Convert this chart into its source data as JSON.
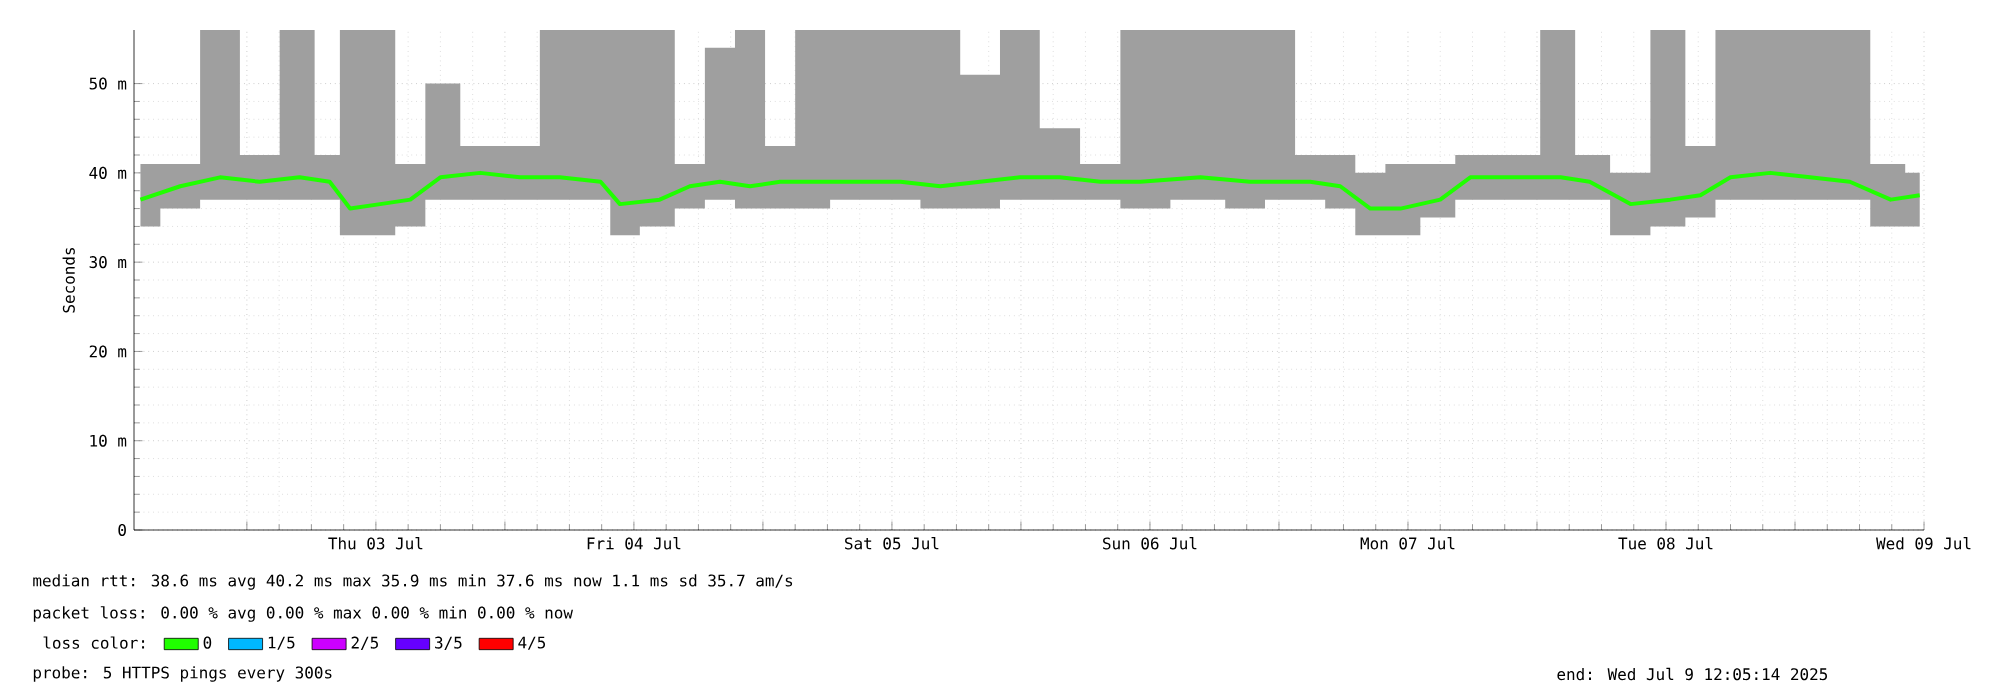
{
  "chart_data": {
    "type": "line",
    "ylabel": "Seconds",
    "legend_title": "loss color:",
    "legend": "bottom",
    "grid": true,
    "marker": "none",
    "line_style": "solid",
    "x": [
      "2025-07-02T02:06",
      "2025-07-02T05:48",
      "2025-07-02T09:30",
      "2025-07-02T13:12",
      "2025-07-02T16:54",
      "2025-07-02T19:42",
      "2025-07-02T21:36",
      "2025-07-03T00:24",
      "2025-07-03T03:12",
      "2025-07-03T06:00",
      "2025-07-03T09:42",
      "2025-07-03T13:24",
      "2025-07-03T17:06",
      "2025-07-03T20:54",
      "2025-07-03T22:42",
      "2025-07-04T02:24",
      "2025-07-04T05:12",
      "2025-07-04T08:00",
      "2025-07-04T10:48",
      "2025-07-04T13:36",
      "2025-07-04T16:24",
      "2025-07-04T20:06",
      "2025-07-05T00:48",
      "2025-07-05T04:30",
      "2025-07-05T08:12",
      "2025-07-05T11:54",
      "2025-07-05T15:36",
      "2025-07-05T19:24",
      "2025-07-05T23:06",
      "2025-07-06T04:42",
      "2025-07-06T09:18",
      "2025-07-06T12:06",
      "2025-07-06T14:54",
      "2025-07-06T17:42",
      "2025-07-06T20:30",
      "2025-07-06T23:18",
      "2025-07-07T03:00",
      "2025-07-07T05:48",
      "2025-07-07T10:24",
      "2025-07-07T14:12",
      "2025-07-07T16:54",
      "2025-07-07T20:42",
      "2025-07-08T00:24",
      "2025-07-08T03:12",
      "2025-07-08T06:00",
      "2025-07-08T09:42",
      "2025-07-08T13:24",
      "2025-07-08T17:06",
      "2025-07-08T20:54",
      "2025-07-08T23:36"
    ],
    "xlim": [
      "2025-07-02T01:30",
      "2025-07-09"
    ],
    "ylim": [
      0,
      56
    ],
    "xticks": [
      {
        "value": "2025-07-02T12:00",
        "label": null
      },
      {
        "value": "2025-07-03",
        "label": "Thu 03 Jul"
      },
      {
        "value": "2025-07-03T12:00",
        "label": null
      },
      {
        "value": "2025-07-04",
        "label": "Fri 04 Jul"
      },
      {
        "value": "2025-07-04T12:00",
        "label": null
      },
      {
        "value": "2025-07-05",
        "label": "Sat 05 Jul"
      },
      {
        "value": "2025-07-05T12:00",
        "label": null
      },
      {
        "value": "2025-07-06",
        "label": "Sun 06 Jul"
      },
      {
        "value": "2025-07-06T12:00",
        "label": null
      },
      {
        "value": "2025-07-07",
        "label": "Mon 07 Jul"
      },
      {
        "value": "2025-07-07T12:00",
        "label": null
      },
      {
        "value": "2025-07-08",
        "label": "Tue 08 Jul"
      },
      {
        "value": "2025-07-08T12:00",
        "label": null
      },
      {
        "value": "2025-07-09",
        "label": "Wed 09 Jul"
      }
    ],
    "yticks": [
      0,
      {
        "value": 10,
        "label": "10 m"
      },
      {
        "value": 20,
        "label": "20 m"
      },
      {
        "value": 30,
        "label": "30 m"
      },
      {
        "value": 40,
        "label": "40 m"
      },
      {
        "value": 50,
        "label": "50 m"
      }
    ],
    "series": [
      {
        "name": "0",
        "color": "#20ff00",
        "values": [
          37,
          38.5,
          39.5,
          39,
          39.5,
          39,
          36,
          36.5,
          37,
          39.5,
          40,
          39.5,
          39.5,
          39,
          36.5,
          37,
          38.5,
          39,
          38.5,
          39,
          39,
          39,
          39,
          38.5,
          39,
          39.5,
          39.5,
          39,
          39,
          39.5,
          39,
          39,
          39,
          38.5,
          36,
          36,
          37,
          39.5,
          39.5,
          39.5,
          39,
          36.5,
          37,
          37.5,
          39.5,
          40,
          39.5,
          39,
          37,
          37.5
        ],
        "lower": [
          34,
          36,
          37,
          37,
          37,
          37,
          33,
          33,
          34,
          37,
          37,
          37,
          37,
          37,
          33,
          34,
          36,
          37,
          36,
          36,
          36,
          37,
          37,
          36,
          36,
          37,
          37,
          37,
          36,
          37,
          36,
          37,
          37,
          36,
          33,
          33,
          35,
          37,
          37,
          37,
          37,
          33,
          34,
          35,
          37,
          37,
          37,
          37,
          34,
          34
        ],
        "upper": [
          41,
          41,
          56,
          42,
          56,
          42,
          56,
          56,
          41,
          50,
          43,
          43,
          56,
          56,
          56,
          56,
          41,
          54,
          56,
          43,
          56,
          56,
          56,
          56,
          51,
          56,
          45,
          41,
          56,
          56,
          56,
          56,
          42,
          42,
          40,
          41,
          41,
          42,
          42,
          56,
          42,
          40,
          56,
          43,
          56,
          56,
          56,
          56,
          41,
          40
        ]
      },
      {
        "name": "1/5",
        "color": "#00b8ff",
        "values": [
          null,
          null,
          null,
          null,
          null,
          null,
          null,
          null,
          null,
          null,
          null,
          null,
          null,
          null,
          null,
          null,
          null,
          null,
          null,
          null,
          null,
          null,
          null,
          null,
          null,
          null,
          null,
          null,
          null,
          null,
          null,
          null,
          null,
          null,
          null,
          null,
          null,
          null,
          null,
          null,
          null,
          null,
          null,
          null,
          null,
          null,
          null,
          null,
          null,
          null
        ]
      },
      {
        "name": "2/5",
        "color": "#cc00ff",
        "values": [
          null,
          null,
          null,
          null,
          null,
          null,
          null,
          null,
          null,
          null,
          null,
          null,
          null,
          null,
          null,
          null,
          null,
          null,
          null,
          null,
          null,
          null,
          null,
          null,
          null,
          null,
          null,
          null,
          null,
          null,
          null,
          null,
          null,
          null,
          null,
          null,
          null,
          null,
          null,
          null,
          null,
          null,
          null,
          null,
          null,
          null,
          null,
          null,
          null,
          null
        ]
      },
      {
        "name": "3/5",
        "color": "#6600ff",
        "values": [
          null,
          null,
          null,
          null,
          null,
          null,
          null,
          null,
          null,
          null,
          null,
          null,
          null,
          null,
          null,
          null,
          null,
          null,
          null,
          null,
          null,
          null,
          null,
          null,
          null,
          null,
          null,
          null,
          null,
          null,
          null,
          null,
          null,
          null,
          null,
          null,
          null,
          null,
          null,
          null,
          null,
          null,
          null,
          null,
          null,
          null,
          null,
          null,
          null,
          null
        ]
      },
      {
        "name": "4/5",
        "color": "#ff0000",
        "values": [
          null,
          null,
          null,
          null,
          null,
          null,
          null,
          null,
          null,
          null,
          null,
          null,
          null,
          null,
          null,
          null,
          null,
          null,
          null,
          null,
          null,
          null,
          null,
          null,
          null,
          null,
          null,
          null,
          null,
          null,
          null,
          null,
          null,
          null,
          null,
          null,
          null,
          null,
          null,
          null,
          null,
          null,
          null,
          null,
          null,
          null,
          null,
          null,
          null,
          null
        ]
      }
    ],
    "annotations": [
      "median rtt:  38.6 ms avg  40.2 ms max  35.9 ms min  37.6 ms now  1.1 ms sd  35.7   am/s",
      "packet loss: 0.00 % avg  0.00 % max  0.00 % min  0.00 % now",
      "probe:       5 HTTPS pings every 300s",
      "end: Wed Jul  9 12:05:14 2025"
    ]
  }
}
